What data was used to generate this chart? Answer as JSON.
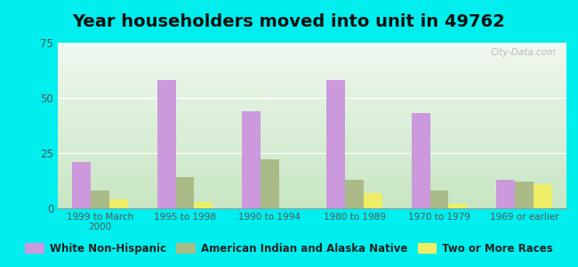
{
  "title": "Year householders moved into unit in 49762",
  "categories": [
    "1999 to March\n2000",
    "1995 to 1998",
    "1990 to 1994",
    "1980 to 1989",
    "1970 to 1979",
    "1969 or earlier"
  ],
  "series": {
    "White Non-Hispanic": [
      21,
      58,
      44,
      58,
      43,
      13
    ],
    "American Indian and Alaska Native": [
      8,
      14,
      22,
      13,
      8,
      12
    ],
    "Two or More Races": [
      4,
      3,
      0,
      7,
      2,
      11
    ]
  },
  "colors": {
    "White Non-Hispanic": "#cc99dd",
    "American Indian and Alaska Native": "#aabb88",
    "Two or More Races": "#eeee66"
  },
  "ylim": [
    0,
    75
  ],
  "yticks": [
    0,
    25,
    50,
    75
  ],
  "outer_background": "#00eeee",
  "watermark": "City-Data.com",
  "bar_width": 0.22,
  "title_fontsize": 14,
  "legend_fontsize": 8.5,
  "gradient_top": "#f0f8f0",
  "gradient_bottom": "#c8e8c0"
}
